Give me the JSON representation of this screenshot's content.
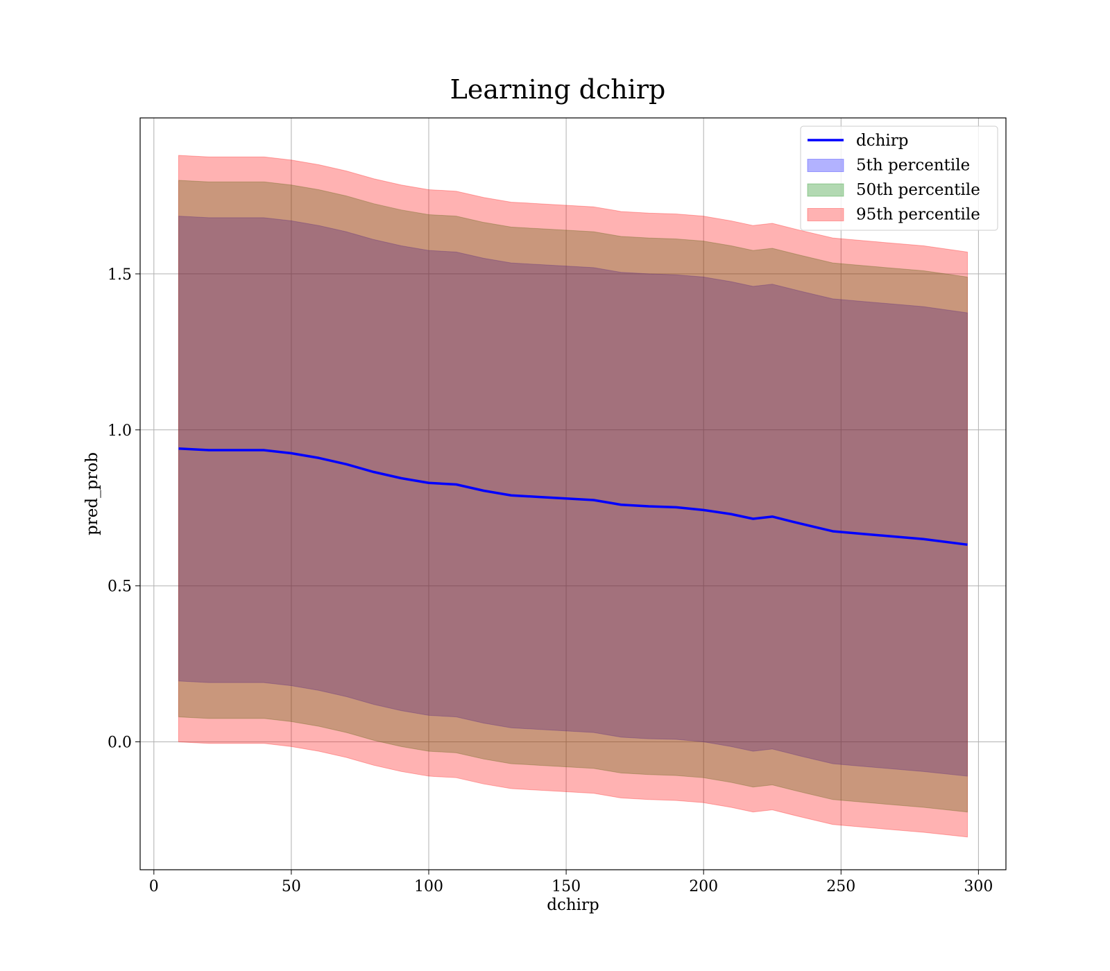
{
  "chart_data": {
    "type": "line",
    "title": "Learning dchirp",
    "xlabel": "dchirp",
    "ylabel": "pred_prob",
    "xlim": [
      -5,
      310
    ],
    "ylim": [
      -0.41,
      2.0
    ],
    "xticks": [
      0,
      50,
      100,
      150,
      200,
      250,
      300
    ],
    "xtick_labels": [
      "0",
      "50",
      "100",
      "150",
      "200",
      "250",
      "300"
    ],
    "yticks": [
      0.0,
      0.5,
      1.0,
      1.5
    ],
    "ytick_labels": [
      "0.0",
      "0.5",
      "1.0",
      "1.5"
    ],
    "grid": true,
    "legend_position": "top-right",
    "x": [
      9,
      20,
      30,
      40,
      50,
      60,
      70,
      80,
      90,
      100,
      110,
      120,
      130,
      140,
      150,
      160,
      170,
      180,
      190,
      200,
      210,
      218,
      225,
      235,
      247,
      260,
      280,
      296
    ],
    "series": [
      {
        "name": "dchirp",
        "kind": "line",
        "color": "#0000ff",
        "values": [
          0.94,
          0.935,
          0.935,
          0.935,
          0.925,
          0.91,
          0.89,
          0.865,
          0.845,
          0.83,
          0.825,
          0.805,
          0.79,
          0.785,
          0.78,
          0.775,
          0.76,
          0.755,
          0.752,
          0.743,
          0.73,
          0.715,
          0.722,
          0.7,
          0.675,
          0.665,
          0.65,
          0.632
        ]
      },
      {
        "name": "5th percentile",
        "kind": "band",
        "color": "#0000ff",
        "lower": [
          0.195,
          0.19,
          0.19,
          0.19,
          0.18,
          0.165,
          0.145,
          0.12,
          0.1,
          0.085,
          0.08,
          0.06,
          0.045,
          0.04,
          0.035,
          0.03,
          0.015,
          0.01,
          0.008,
          0.0,
          -0.015,
          -0.03,
          -0.023,
          -0.045,
          -0.07,
          -0.08,
          -0.095,
          -0.11
        ],
        "upper": [
          1.685,
          1.68,
          1.68,
          1.68,
          1.67,
          1.655,
          1.635,
          1.61,
          1.59,
          1.575,
          1.57,
          1.55,
          1.535,
          1.53,
          1.525,
          1.52,
          1.505,
          1.5,
          1.497,
          1.49,
          1.475,
          1.46,
          1.467,
          1.445,
          1.42,
          1.41,
          1.395,
          1.375
        ]
      },
      {
        "name": "50th percentile",
        "kind": "band",
        "color": "#008000",
        "lower": [
          0.08,
          0.075,
          0.075,
          0.075,
          0.065,
          0.05,
          0.03,
          0.005,
          -0.015,
          -0.03,
          -0.035,
          -0.055,
          -0.07,
          -0.075,
          -0.08,
          -0.085,
          -0.1,
          -0.105,
          -0.108,
          -0.115,
          -0.13,
          -0.145,
          -0.138,
          -0.16,
          -0.185,
          -0.195,
          -0.21,
          -0.225
        ],
        "upper": [
          1.8,
          1.795,
          1.795,
          1.795,
          1.785,
          1.77,
          1.75,
          1.725,
          1.705,
          1.69,
          1.685,
          1.665,
          1.65,
          1.645,
          1.64,
          1.635,
          1.62,
          1.615,
          1.612,
          1.605,
          1.59,
          1.575,
          1.582,
          1.56,
          1.535,
          1.525,
          1.51,
          1.49
        ]
      },
      {
        "name": "95th percentile",
        "kind": "band",
        "color": "#ff0000",
        "lower": [
          0.0,
          -0.005,
          -0.005,
          -0.005,
          -0.015,
          -0.03,
          -0.05,
          -0.075,
          -0.095,
          -0.11,
          -0.115,
          -0.135,
          -0.15,
          -0.155,
          -0.16,
          -0.165,
          -0.18,
          -0.185,
          -0.188,
          -0.195,
          -0.21,
          -0.225,
          -0.218,
          -0.24,
          -0.265,
          -0.275,
          -0.29,
          -0.305
        ],
        "upper": [
          1.88,
          1.875,
          1.875,
          1.875,
          1.865,
          1.85,
          1.83,
          1.805,
          1.785,
          1.77,
          1.765,
          1.745,
          1.73,
          1.725,
          1.72,
          1.715,
          1.7,
          1.695,
          1.692,
          1.685,
          1.67,
          1.655,
          1.662,
          1.64,
          1.615,
          1.605,
          1.59,
          1.57
        ]
      }
    ]
  }
}
